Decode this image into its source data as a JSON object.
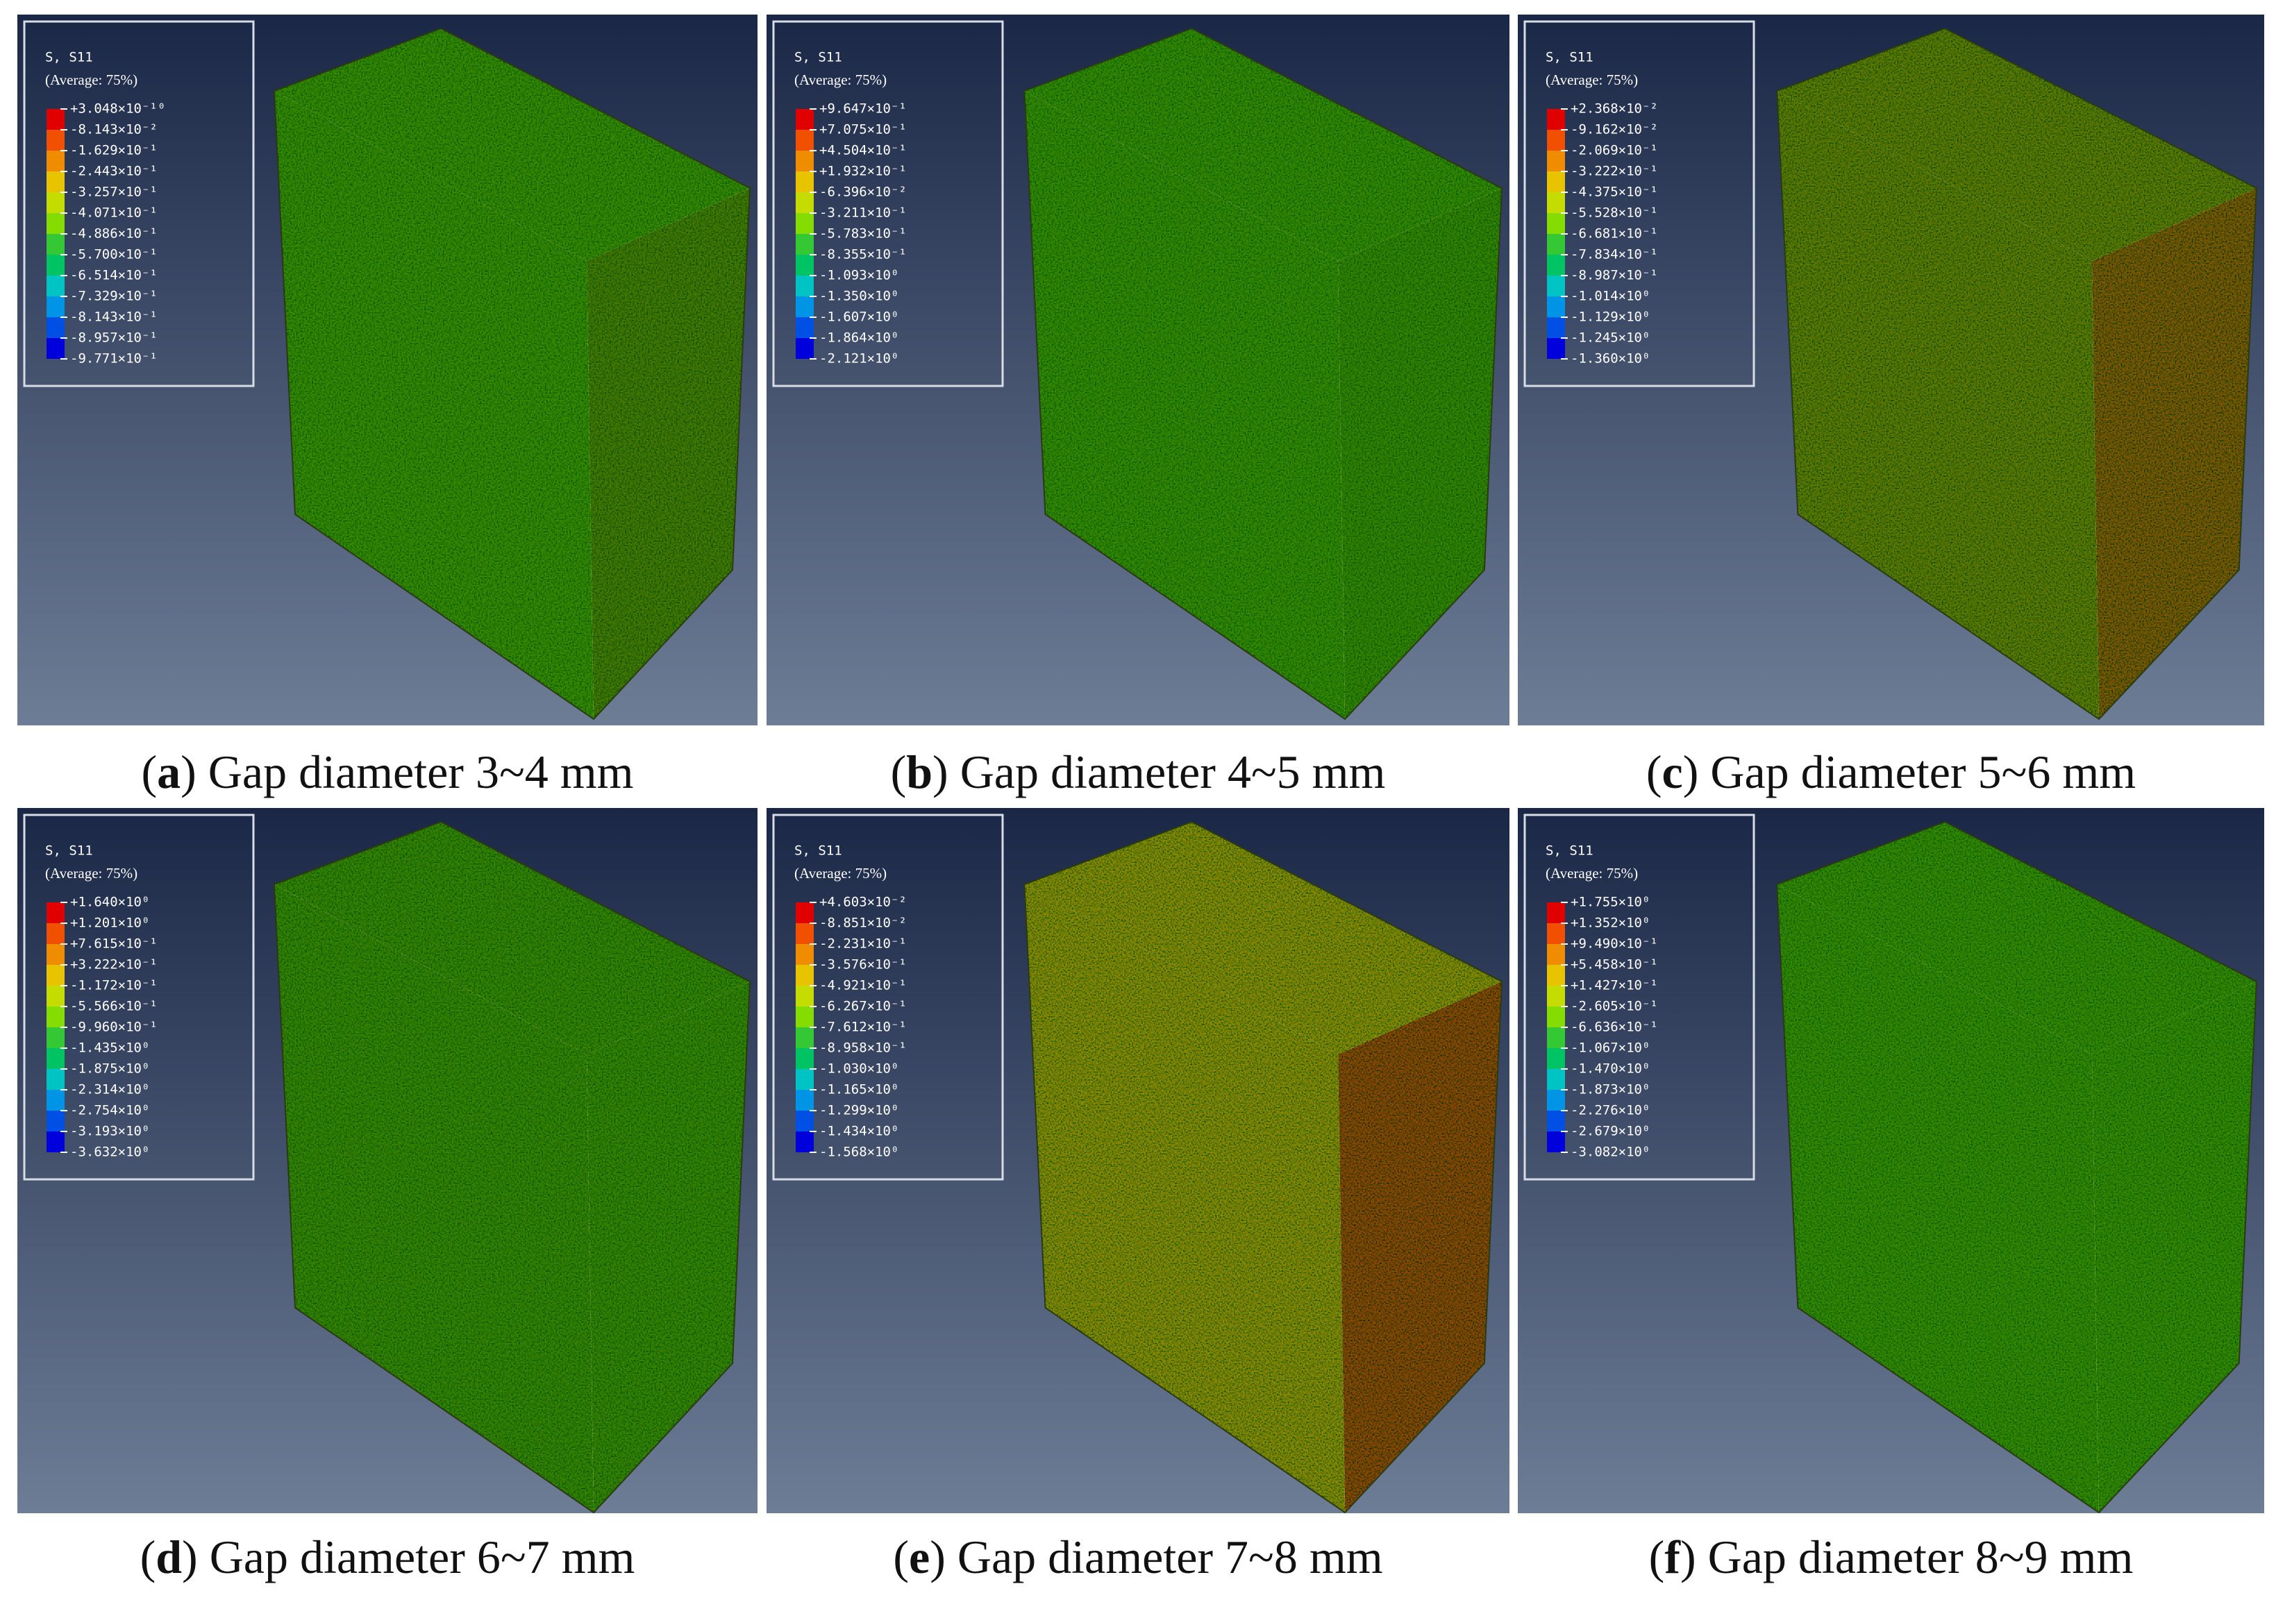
{
  "panels": [
    {
      "legend": {
        "title": "S, S11",
        "subtitle": "(Average: 75%)",
        "values": [
          "+3.048×10⁻¹⁰",
          "-8.143×10⁻²",
          "-1.629×10⁻¹",
          "-2.443×10⁻¹",
          "-3.257×10⁻¹",
          "-4.071×10⁻¹",
          "-4.886×10⁻¹",
          "-5.700×10⁻¹",
          "-6.514×10⁻¹",
          "-7.329×10⁻¹",
          "-8.143×10⁻¹",
          "-8.957×10⁻¹",
          "-9.771×10⁻¹"
        ]
      },
      "caption": [
        "(",
        "a",
        ") Gap diameter 3~4 mm"
      ]
    },
    {
      "legend": {
        "title": "S, S11",
        "subtitle": "(Average: 75%)",
        "values": [
          "+9.647×10⁻¹",
          "+7.075×10⁻¹",
          "+4.504×10⁻¹",
          "+1.932×10⁻¹",
          "-6.396×10⁻²",
          "-3.211×10⁻¹",
          "-5.783×10⁻¹",
          "-8.355×10⁻¹",
          "-1.093×10⁰",
          "-1.350×10⁰",
          "-1.607×10⁰",
          "-1.864×10⁰",
          "-2.121×10⁰"
        ]
      },
      "caption": [
        "(",
        "b",
        ") Gap diameter 4~5 mm"
      ]
    },
    {
      "legend": {
        "title": "S, S11",
        "subtitle": "(Average: 75%)",
        "values": [
          "+2.368×10⁻²",
          "-9.162×10⁻²",
          "-2.069×10⁻¹",
          "-3.222×10⁻¹",
          "-4.375×10⁻¹",
          "-5.528×10⁻¹",
          "-6.681×10⁻¹",
          "-7.834×10⁻¹",
          "-8.987×10⁻¹",
          "-1.014×10⁰",
          "-1.129×10⁰",
          "-1.245×10⁰",
          "-1.360×10⁰"
        ]
      },
      "caption": [
        "(",
        "c",
        ") Gap diameter 5~6 mm"
      ]
    },
    {
      "legend": {
        "title": "S, S11",
        "subtitle": "(Average: 75%)",
        "values": [
          "+1.640×10⁰",
          "+1.201×10⁰",
          "+7.615×10⁻¹",
          "+3.222×10⁻¹",
          "-1.172×10⁻¹",
          "-5.566×10⁻¹",
          "-9.960×10⁻¹",
          "-1.435×10⁰",
          "-1.875×10⁰",
          "-2.314×10⁰",
          "-2.754×10⁰",
          "-3.193×10⁰",
          "-3.632×10⁰"
        ]
      },
      "caption": [
        "(",
        "d",
        ") Gap diameter 6~7 mm"
      ]
    },
    {
      "legend": {
        "title": "S, S11",
        "subtitle": "(Average: 75%)",
        "values": [
          "+4.603×10⁻²",
          "-8.851×10⁻²",
          "-2.231×10⁻¹",
          "-3.576×10⁻¹",
          "-4.921×10⁻¹",
          "-6.267×10⁻¹",
          "-7.612×10⁻¹",
          "-8.958×10⁻¹",
          "-1.030×10⁰",
          "-1.165×10⁰",
          "-1.299×10⁰",
          "-1.434×10⁰",
          "-1.568×10⁰"
        ]
      },
      "caption": [
        "(",
        "e",
        ") Gap diameter 7~8 mm"
      ]
    },
    {
      "legend": {
        "title": "S, S11",
        "subtitle": "(Average: 75%)",
        "values": [
          "+1.755×10⁰",
          "+1.352×10⁰",
          "+9.490×10⁻¹",
          "+5.458×10⁻¹",
          "+1.427×10⁻¹",
          "-2.605×10⁻¹",
          "-6.636×10⁻¹",
          "-1.067×10⁰",
          "-1.470×10⁰",
          "-1.873×10⁰",
          "-2.276×10⁰",
          "-2.679×10⁰",
          "-3.082×10⁰"
        ]
      },
      "caption": [
        "(",
        "f",
        ") Gap diameter 8~9 mm"
      ]
    }
  ]
}
